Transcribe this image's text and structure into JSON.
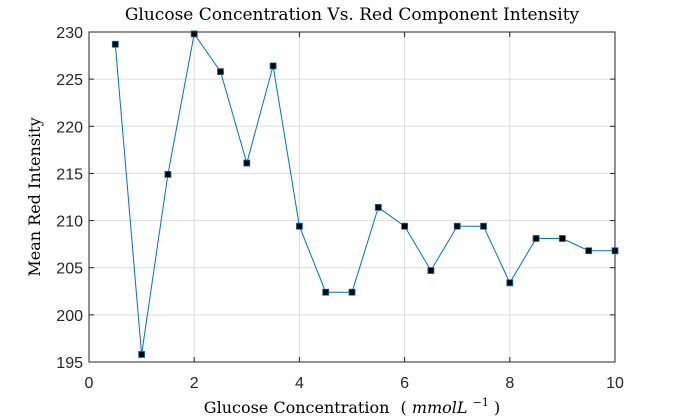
{
  "chart_data": {
    "type": "line",
    "title": "Glucose Concentration Vs. Red Component Intensity",
    "xlabel": "Glucose Concentration",
    "xlabel_unit_parts": [
      "(",
      "mmolL",
      "−1",
      ")"
    ],
    "ylabel": "Mean Red Intensity",
    "xlim": [
      0,
      10
    ],
    "ylim": [
      195,
      230
    ],
    "xticks": [
      0,
      2,
      4,
      6,
      8,
      10
    ],
    "yticks": [
      195,
      200,
      205,
      210,
      215,
      220,
      225,
      230
    ],
    "grid": true,
    "series": [
      {
        "x": [
          0.5,
          1.0,
          1.5,
          2.0,
          2.5,
          3.0,
          3.5,
          4.0,
          4.5,
          5.0,
          5.5,
          6.0,
          6.5,
          7.0,
          7.5,
          8.0,
          8.5,
          9.0,
          9.5,
          10.0
        ],
        "y": [
          228.7,
          195.8,
          214.9,
          229.8,
          225.8,
          216.1,
          226.4,
          209.4,
          202.4,
          202.4,
          211.4,
          209.4,
          204.7,
          209.4,
          209.4,
          203.4,
          208.1,
          208.1,
          206.8,
          206.8
        ],
        "color": "#0072BD",
        "marker": "square",
        "marker_color": "#000000"
      }
    ]
  }
}
